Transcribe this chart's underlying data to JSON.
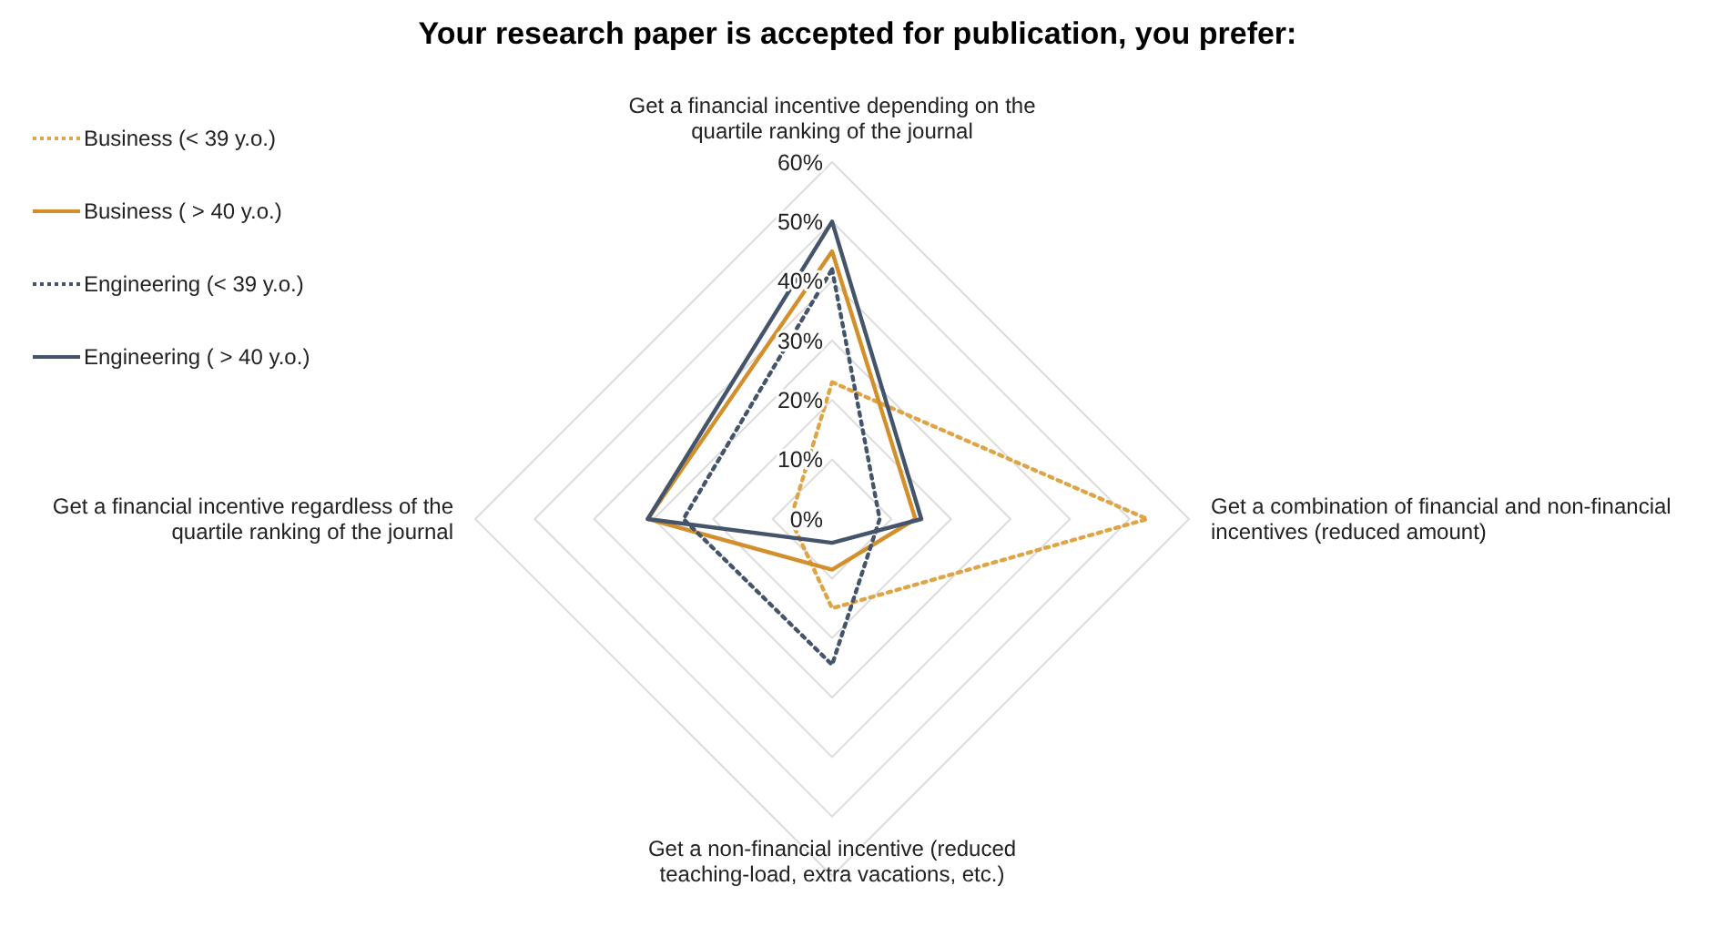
{
  "chart_data": {
    "type": "radar",
    "title": "Your research paper is accepted for publication, you prefer:",
    "categories": [
      "Get a financial incentive depending on the quartile ranking of the journal",
      "Get a combination of financial and non-financial incentives (reduced amount)",
      "Get a non-financial incentive (reduced teaching-load, extra vacations, etc.)",
      "Get a financial incentive regardless of the quartile ranking of the journal"
    ],
    "series": [
      {
        "name": "Business (< 39 y.o.)",
        "color": "#dfa445",
        "line_style": "dotted",
        "values": [
          23,
          53,
          15,
          7
        ]
      },
      {
        "name": "Business ( > 40 y.o.)",
        "color": "#d38f2c",
        "line_style": "solid",
        "values": [
          45,
          14,
          8.5,
          31
        ]
      },
      {
        "name": "Engineering (< 39 y.o.)",
        "color": "#44546a",
        "line_style": "dotted",
        "values": [
          42,
          8,
          24.5,
          25
        ]
      },
      {
        "name": "Engineering ( > 40 y.o.)",
        "color": "#44546a",
        "line_style": "solid",
        "values": [
          50,
          15,
          4,
          31
        ]
      }
    ],
    "ylim": [
      0,
      60
    ],
    "yticks": [
      {
        "value": 0,
        "label": "0%"
      },
      {
        "value": 10,
        "label": "10%"
      },
      {
        "value": 20,
        "label": "20%"
      },
      {
        "value": 30,
        "label": "30%"
      },
      {
        "value": 40,
        "label": "40%"
      },
      {
        "value": 50,
        "label": "50%"
      },
      {
        "value": 60,
        "label": "60%"
      }
    ],
    "grid": true,
    "legend": "top left"
  }
}
